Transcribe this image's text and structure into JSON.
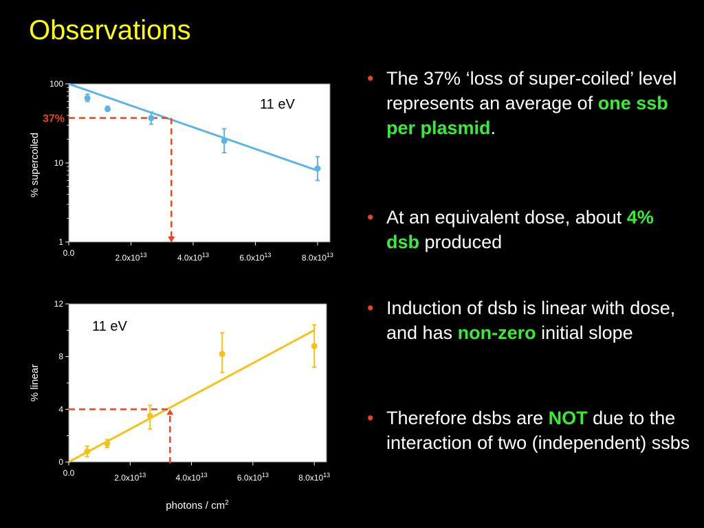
{
  "slide": {
    "title": "Observations",
    "colors": {
      "title": "#ffff00",
      "bullet": "#e8461e",
      "highlight": "#33ee33",
      "top_series": "#5ab4e8",
      "bottom_series": "#f5c218",
      "guide": "#e8461e"
    }
  },
  "chart_data": [
    {
      "type": "scatter",
      "scale_y": "log",
      "ylabel": "% supercoiled",
      "annotation": "11 eV",
      "marker_label": "37%",
      "ylim": [
        1,
        100
      ],
      "xlim": [
        0,
        84000000000000.0
      ],
      "yticks": [
        "100",
        "10",
        "1"
      ],
      "xticks": [
        "0.0",
        "2.0x10",
        "4.0x10",
        "6.0x10",
        "8.0x10"
      ],
      "xtick_exponent": "13",
      "series": [
        {
          "x": [
            6000000000000.0,
            12500000000000.0,
            26500000000000.0,
            50000000000000.0,
            80000000000000.0
          ],
          "y": [
            66,
            48,
            37,
            19,
            8.5
          ],
          "err_low": [
            60,
            46,
            31,
            13.5,
            6
          ],
          "err_high": [
            74,
            52,
            44,
            27,
            12
          ]
        }
      ],
      "fit_line": {
        "x": [
          0,
          80000000000000.0
        ],
        "y": [
          100,
          8
        ]
      },
      "guide": {
        "y": 37,
        "x": 33000000000000.0
      },
      "grid": false
    },
    {
      "type": "scatter",
      "ylabel": "% linear",
      "xlabel": "photons / cm",
      "xlabel_sup": "2",
      "annotation": "11 eV",
      "ylim": [
        0,
        12
      ],
      "xlim": [
        0,
        84000000000000.0
      ],
      "yticks": [
        "12",
        "8",
        "4",
        "0"
      ],
      "xticks": [
        "0.0",
        "2.0x10",
        "4.0x10",
        "6.0x10",
        "8.0x10"
      ],
      "xtick_exponent": "13",
      "series": [
        {
          "x": [
            6000000000000.0,
            12500000000000.0,
            26500000000000.0,
            50000000000000.0,
            80000000000000.0
          ],
          "y": [
            0.8,
            1.4,
            3.5,
            8.2,
            8.8
          ],
          "err_low": [
            0.4,
            1.1,
            2.5,
            6.8,
            7.2
          ],
          "err_high": [
            1.2,
            1.7,
            4.3,
            9.8,
            10.4
          ]
        }
      ],
      "fit_line": {
        "x": [
          0,
          80000000000000.0
        ],
        "y": [
          0,
          10.0
        ]
      },
      "guide": {
        "y": 4,
        "x": 33000000000000.0
      },
      "grid": false
    }
  ],
  "bullets": [
    {
      "parts": [
        {
          "t": "The 37% ‘loss of super-coiled’ level represents an average of "
        },
        {
          "t": "one ssb per plasmid",
          "hl": true
        },
        {
          "t": "."
        }
      ]
    },
    {
      "parts": [
        {
          "t": "At an equivalent dose, about "
        },
        {
          "t": "4% dsb",
          "hl": true
        },
        {
          "t": " produced"
        }
      ]
    },
    {
      "parts": [
        {
          "t": "Induction of dsb is linear with dose, and has "
        },
        {
          "t": "non-zero",
          "hl": true
        },
        {
          "t": " initial slope"
        }
      ]
    },
    {
      "parts": [
        {
          "t": "Therefore dsbs are "
        },
        {
          "t": "NOT",
          "hl": true
        },
        {
          "t": " due to the interaction of two (independent) ssbs"
        }
      ]
    }
  ]
}
